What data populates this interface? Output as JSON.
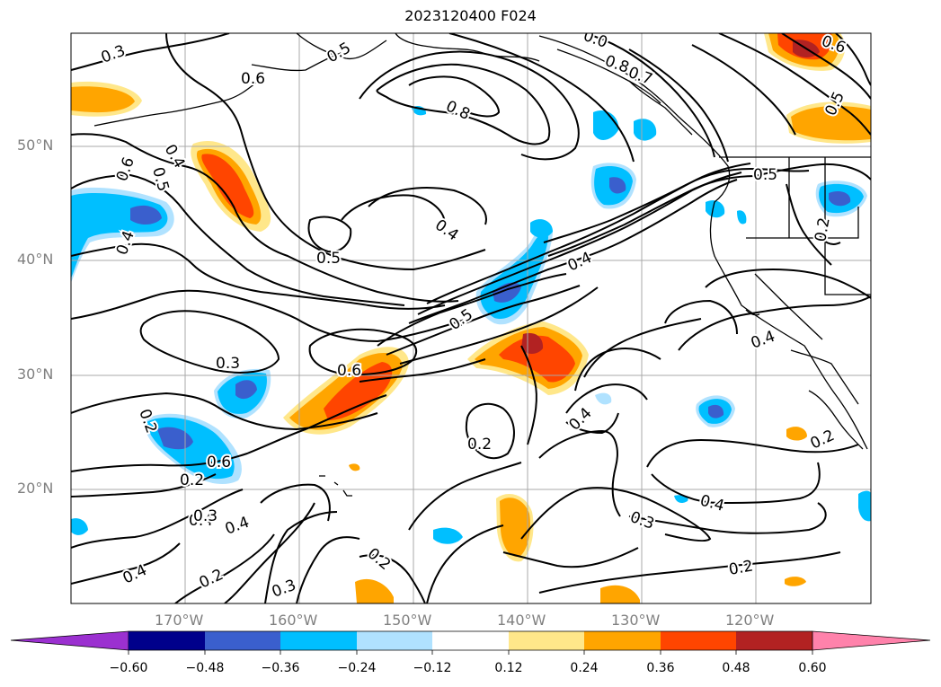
{
  "title": "2023120400 F024",
  "colors": {
    "background": "#ffffff",
    "contour": "#000000",
    "grid": "#a0a0a0",
    "coast": "#000000"
  },
  "lat_labels": [
    "50°N",
    "40°N",
    "30°N",
    "20°N"
  ],
  "lon_labels": [
    "170°W",
    "160°W",
    "150°W",
    "140°W",
    "130°W",
    "120°W"
  ],
  "contour_labels": [
    {
      "text": "0.3",
      "id": "c1"
    },
    {
      "text": "0.6",
      "id": "c2"
    },
    {
      "text": "0.5",
      "id": "c3"
    },
    {
      "text": "0.8",
      "id": "c4"
    },
    {
      "text": "0.8",
      "id": "c5"
    },
    {
      "text": "0.7",
      "id": "c6"
    },
    {
      "text": "0.6",
      "id": "c7"
    },
    {
      "text": "0.5",
      "id": "c8"
    },
    {
      "text": "0.4",
      "id": "c9"
    },
    {
      "text": "0.6",
      "id": "c10"
    },
    {
      "text": "0.5",
      "id": "c11"
    },
    {
      "text": "0.4",
      "id": "c12"
    },
    {
      "text": "0.4",
      "id": "c13"
    },
    {
      "text": "0.5",
      "id": "c14"
    },
    {
      "text": "0.4",
      "id": "c15"
    },
    {
      "text": "0.5",
      "id": "c16"
    },
    {
      "text": "0.3",
      "id": "c17"
    },
    {
      "text": "0.6",
      "id": "c18"
    },
    {
      "text": "0.4",
      "id": "c19"
    },
    {
      "text": "0.4",
      "id": "c20"
    },
    {
      "text": "0.2",
      "id": "c21"
    },
    {
      "text": "0.2",
      "id": "c22"
    },
    {
      "text": "0.3",
      "id": "c23"
    },
    {
      "text": "0.4",
      "id": "c24"
    },
    {
      "text": "0.3",
      "id": "c25"
    },
    {
      "text": "0.2",
      "id": "c26"
    },
    {
      "text": "0.2",
      "id": "c27"
    },
    {
      "text": "0.4",
      "id": "c28"
    },
    {
      "text": "0.2",
      "id": "c29"
    },
    {
      "text": "0.3",
      "id": "c30"
    },
    {
      "text": "0.4",
      "id": "c31"
    },
    {
      "text": "0.2",
      "id": "c32"
    },
    {
      "text": "0.2",
      "id": "c33"
    },
    {
      "text": "0.4",
      "id": "c34"
    },
    {
      "text": "0.2",
      "id": "c35"
    },
    {
      "text": "0.5",
      "id": "c36"
    },
    {
      "text": "0.6",
      "id": "c37"
    },
    {
      "text": "0.0",
      "id": "c38"
    }
  ],
  "colorbar": {
    "tick_labels": [
      "−0.60",
      "−0.48",
      "−0.36",
      "−0.24",
      "−0.12",
      "0.12",
      "0.24",
      "0.36",
      "0.48",
      "0.60"
    ],
    "bin_colors": [
      "#9b30d0",
      "#00008b",
      "#3a5fcd",
      "#00bfff",
      "#b0e2ff",
      "#ffffff",
      "#ffe78a",
      "#ffa500",
      "#ff4500",
      "#b22222",
      "#ff82ab"
    ]
  }
}
